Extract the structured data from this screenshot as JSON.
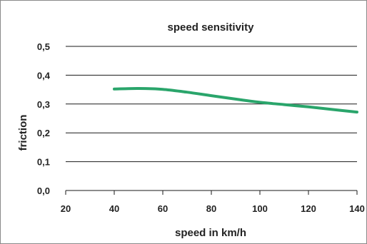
{
  "chart_data": {
    "type": "line",
    "title": "speed sensitivity",
    "xlabel": "speed in km/h",
    "ylabel": "friction",
    "xlim": [
      20,
      140
    ],
    "ylim": [
      0,
      0.5
    ],
    "x_ticks": [
      20,
      40,
      60,
      80,
      100,
      120,
      140
    ],
    "y_ticks": [
      0,
      0.1,
      0.2,
      0.3,
      0.4,
      0.5
    ],
    "x_tick_labels": [
      "20",
      "40",
      "60",
      "80",
      "100",
      "120",
      "140"
    ],
    "y_tick_labels": [
      "0,0",
      "0,1",
      "0,2",
      "0,3",
      "0,4",
      "0,5"
    ],
    "grid": true,
    "legend": "none",
    "series": [
      {
        "color": "#2aa56b",
        "x": [
          40,
          50,
          60,
          70,
          80,
          90,
          100,
          110,
          120,
          130,
          140
        ],
        "y": [
          0.352,
          0.354,
          0.351,
          0.341,
          0.329,
          0.317,
          0.306,
          0.298,
          0.29,
          0.281,
          0.272
        ]
      }
    ]
  }
}
